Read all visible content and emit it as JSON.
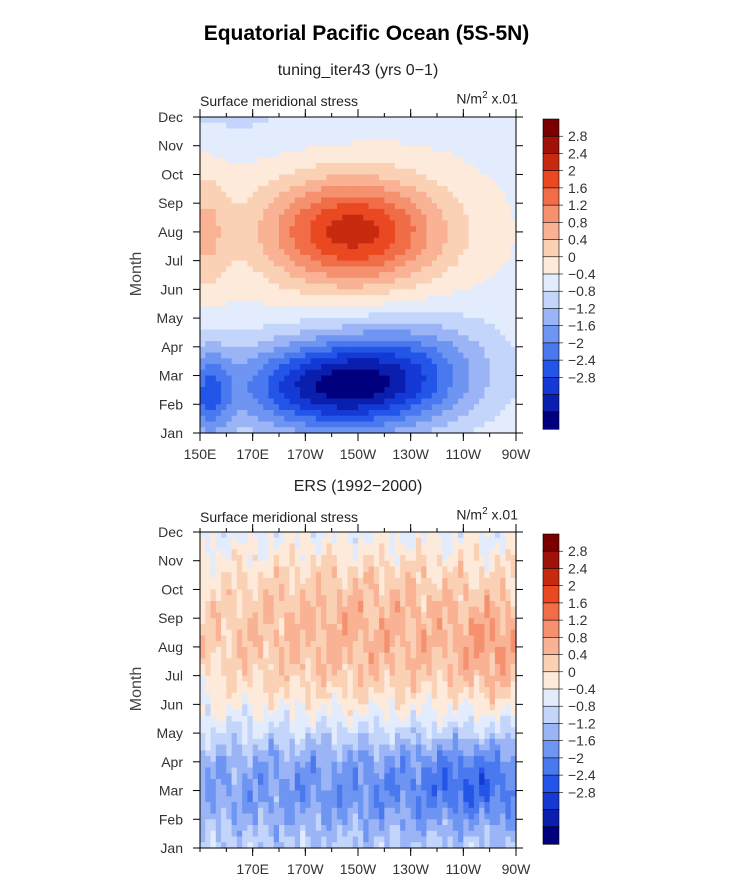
{
  "title": "Equatorial Pacific Ocean (5S-5N)",
  "colors": [
    "#00007e",
    "#0a1fae",
    "#1439d4",
    "#2255e8",
    "#4a78ee",
    "#6e95f2",
    "#9ab4f6",
    "#c3d5fa",
    "#e3ecfd",
    "#fdeada",
    "#fbd1b6",
    "#f9b294",
    "#f5916f",
    "#f06d47",
    "#e94821",
    "#c82a0f",
    "#a01108",
    "#7a0000"
  ],
  "colorbar_labels": [
    "2.8",
    "2.4",
    "2",
    "1.6",
    "1.2",
    "0.8",
    "0.4",
    "0",
    "−0.4",
    "−0.8",
    "−1.2",
    "−1.6",
    "−2",
    "−2.4",
    "−2.8"
  ],
  "chart_data": [
    {
      "type": "heatmap",
      "title": "tuning_iter43 (yrs 0−1)",
      "subtitle_left": "Surface meridional stress",
      "units_prefix": "N/m",
      "units_exp": "2",
      "units_suffix": " x.01",
      "ylabel": "Month",
      "y_ticks": [
        "Jan",
        "Feb",
        "Mar",
        "Apr",
        "May",
        "Jun",
        "Jul",
        "Aug",
        "Sep",
        "Oct",
        "Nov",
        "Dec"
      ],
      "x_range": [
        150,
        270
      ],
      "x_ticks": [
        {
          "lon": 150,
          "label": "150E"
        },
        {
          "lon": 170,
          "label": "170E"
        },
        {
          "lon": 190,
          "label": "170W"
        },
        {
          "lon": 210,
          "label": "150W"
        },
        {
          "lon": 230,
          "label": "130W"
        },
        {
          "lon": 250,
          "label": "110W"
        },
        {
          "lon": 270,
          "label": "90W"
        }
      ],
      "levels": [
        -2.8,
        -2.4,
        -2,
        -1.6,
        -1.2,
        -0.8,
        -0.4,
        0,
        0.4,
        0.8,
        1.2,
        1.6,
        2,
        2.4,
        2.8
      ]
    },
    {
      "type": "heatmap",
      "title": "ERS (1992−2000)",
      "subtitle_left": "Surface meridional stress",
      "units_prefix": "N/m",
      "units_exp": "2",
      "units_suffix": " x.01",
      "ylabel": "Month",
      "y_ticks": [
        "Jan",
        "Feb",
        "Mar",
        "Apr",
        "May",
        "Jun",
        "Jul",
        "Aug",
        "Sep",
        "Oct",
        "Nov",
        "Dec"
      ],
      "x_range": [
        150,
        270
      ],
      "x_ticks": [
        {
          "lon": 170,
          "label": "170E"
        },
        {
          "lon": 190,
          "label": "170W"
        },
        {
          "lon": 210,
          "label": "150W"
        },
        {
          "lon": 230,
          "label": "130W"
        },
        {
          "lon": 250,
          "label": "110W"
        },
        {
          "lon": 270,
          "label": "90W"
        }
      ],
      "levels": [
        -2.8,
        -2.4,
        -2,
        -1.6,
        -1.2,
        -0.8,
        -0.4,
        0,
        0.4,
        0.8,
        1.2,
        1.6,
        2,
        2.4,
        2.8
      ]
    }
  ]
}
